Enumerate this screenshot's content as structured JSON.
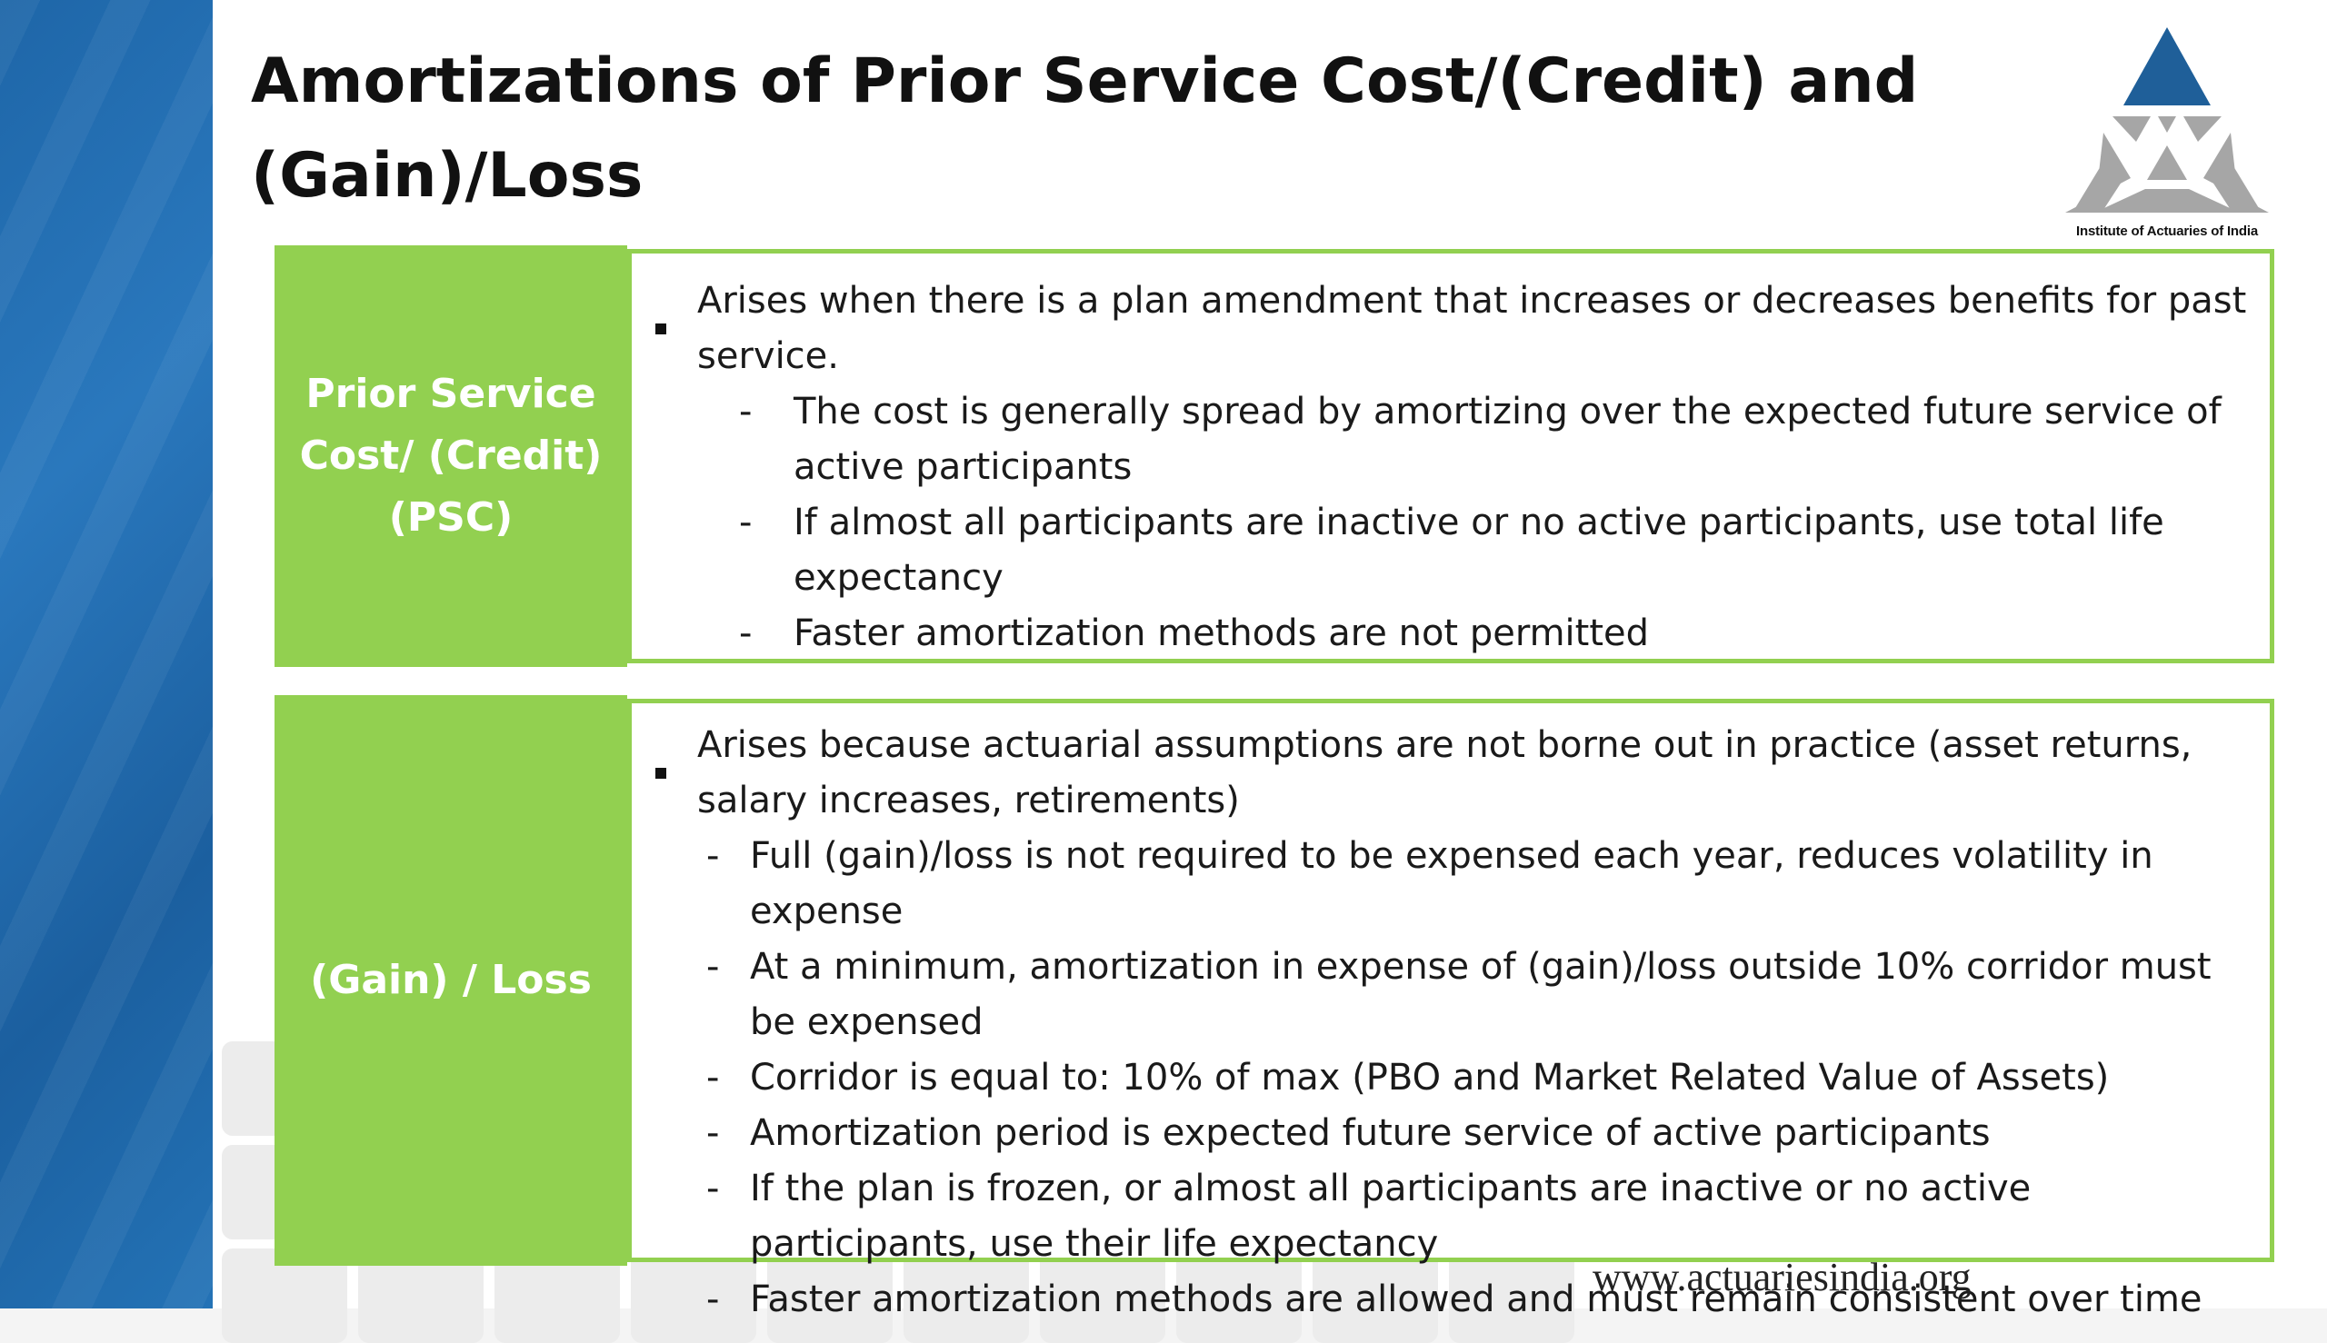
{
  "slide": {
    "title_line1": "Amortizations of Prior Service Cost/(Credit) and",
    "title_line2": "(Gain)/Loss",
    "logo_caption": "Institute of Actuaries of India",
    "footer_url": "www.actuariesindia.org",
    "accent_color": "#92d050",
    "brand_color": "#1f6fb2"
  },
  "sections": [
    {
      "label_line1": "Prior Service",
      "label_line2": "Cost/ (Credit)",
      "label_line3": "(PSC)",
      "bullet": "Arises when there is a plan amendment that increases or decreases benefits for past service.",
      "subs": [
        "The cost is generally spread by amortizing over the expected future service of active participants",
        "If almost all participants are inactive or no active participants, use total life expectancy",
        "Faster amortization methods are not permitted"
      ]
    },
    {
      "label": "(Gain) / Loss",
      "bullet": "Arises because actuarial assumptions are not borne out in practice (asset returns, salary increases, retirements)",
      "subs": [
        "Full (gain)/loss is not required to be expensed each year, reduces volatility in expense",
        "At a minimum, amortization in expense of (gain)/loss outside 10% corridor must be expensed",
        "Corridor is equal to: 10% of max (PBO and Market Related Value of Assets)",
        "Amortization period is expected future service of active participants",
        "If the plan is frozen, or almost all participants are inactive or no active participants, use their life expectancy",
        "Faster amortization methods are allowed and must remain consistent over time"
      ]
    }
  ],
  "markers": {
    "dash": "-"
  },
  "icons": {
    "logo": "iai-triangle-logo",
    "bullet": "square-bullet-icon"
  }
}
